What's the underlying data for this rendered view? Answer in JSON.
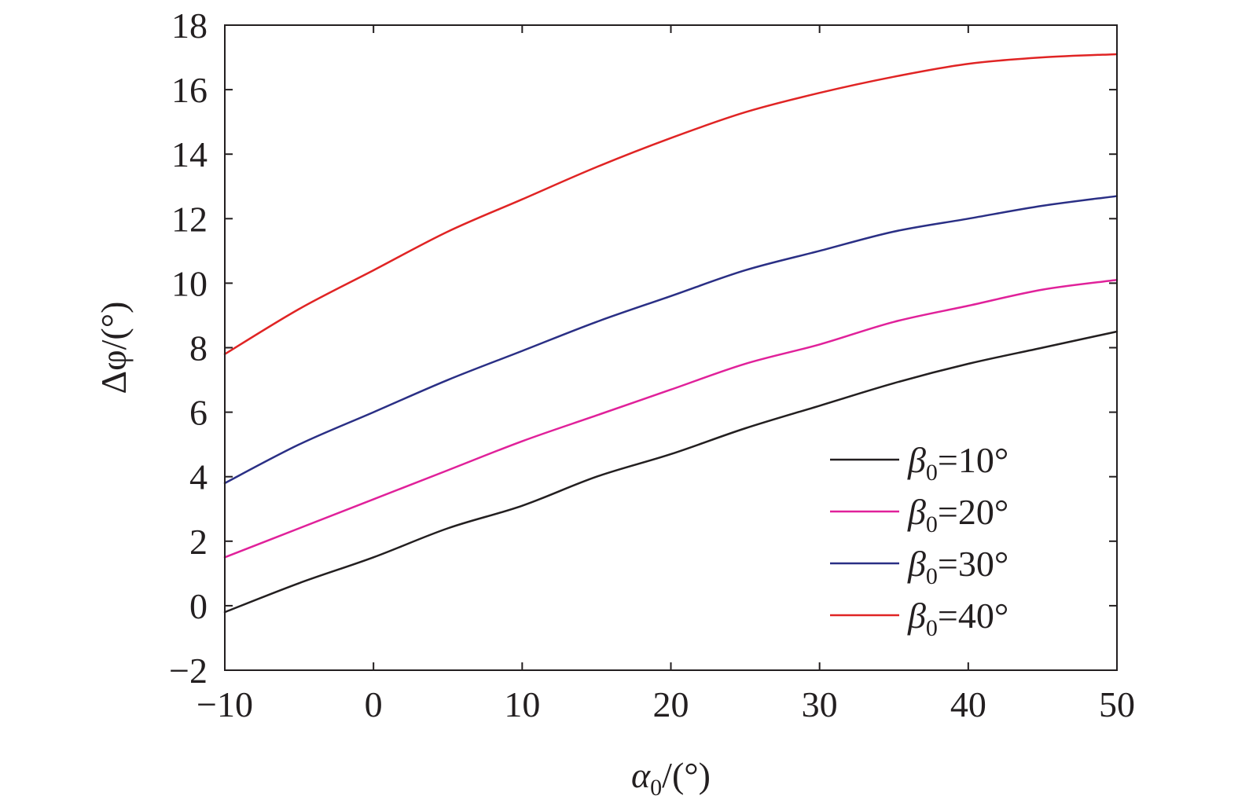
{
  "chart_data": {
    "type": "line",
    "title": "",
    "xlabel": {
      "symbol": "α",
      "subscript": "0",
      "unit": "/(°)"
    },
    "ylabel": {
      "symbol": "Δφ",
      "unit": "/(°)"
    },
    "xlim": [
      -10,
      50
    ],
    "ylim": [
      -2,
      18
    ],
    "x_ticks": [
      -10,
      0,
      10,
      20,
      30,
      40,
      50
    ],
    "y_ticks": [
      -2,
      0,
      2,
      4,
      6,
      8,
      10,
      12,
      14,
      16,
      18
    ],
    "x_tick_labels": [
      "−10",
      "0",
      "10",
      "20",
      "30",
      "40",
      "50"
    ],
    "y_tick_labels": [
      "−2",
      "0",
      "2",
      "4",
      "6",
      "8",
      "10",
      "12",
      "14",
      "16",
      "18"
    ],
    "grid": false,
    "legend_position": "bottom-right",
    "x": [
      -10,
      -5,
      0,
      5,
      10,
      15,
      20,
      25,
      30,
      35,
      40,
      45,
      50
    ],
    "series": [
      {
        "name": "β0=10°",
        "label": {
          "symbol": "β",
          "subscript": "0",
          "value": "=10°"
        },
        "color": "#231f20",
        "values": [
          -0.2,
          0.7,
          1.5,
          2.4,
          3.1,
          4.0,
          4.7,
          5.5,
          6.2,
          6.9,
          7.5,
          8.0,
          8.5
        ]
      },
      {
        "name": "β0=20°",
        "label": {
          "symbol": "β",
          "subscript": "0",
          "value": "=20°"
        },
        "color": "#e0219a",
        "values": [
          1.5,
          2.4,
          3.3,
          4.2,
          5.1,
          5.9,
          6.7,
          7.5,
          8.1,
          8.8,
          9.3,
          9.8,
          10.1
        ]
      },
      {
        "name": "β0=30°",
        "label": {
          "symbol": "β",
          "subscript": "0",
          "value": "=30°"
        },
        "color": "#2a2f85",
        "values": [
          3.8,
          5.0,
          6.0,
          7.0,
          7.9,
          8.8,
          9.6,
          10.4,
          11.0,
          11.6,
          12.0,
          12.4,
          12.7
        ]
      },
      {
        "name": "β0=40°",
        "label": {
          "symbol": "β",
          "subscript": "0",
          "value": "=40°"
        },
        "color": "#e02424",
        "values": [
          7.8,
          9.2,
          10.4,
          11.6,
          12.6,
          13.6,
          14.5,
          15.3,
          15.9,
          16.4,
          16.8,
          17.0,
          17.1
        ]
      }
    ]
  }
}
